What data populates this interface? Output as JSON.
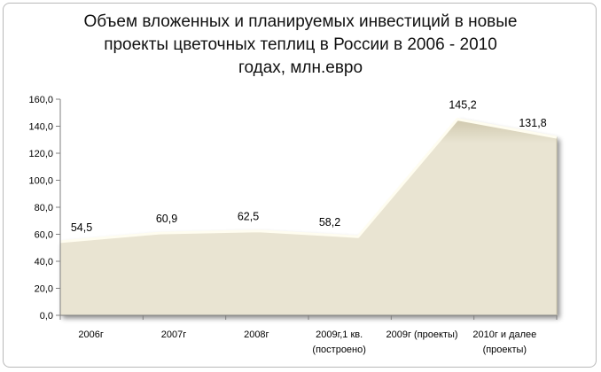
{
  "chart_data": {
    "type": "area",
    "title_lines": [
      "Объем вложенных и планируемых инвестиций в новые",
      "проекты цветочных теплиц в России в 2006 - 2010",
      "годах, млн.евро"
    ],
    "categories": [
      "2006г",
      "2007г",
      "2008г",
      "2009г,1 кв.\n(построено)",
      "2009г (проекты)",
      "2010г и далее\n(проекты)"
    ],
    "values": [
      54.5,
      60.9,
      62.5,
      58.2,
      145.2,
      131.8
    ],
    "value_labels": [
      "54,5",
      "60,9",
      "62,5",
      "58,2",
      "145,2",
      "131,8"
    ],
    "y_ticks": [
      "0,0",
      "20,0",
      "40,0",
      "60,0",
      "80,0",
      "100,0",
      "120,0",
      "140,0",
      "160,0"
    ],
    "ylim": [
      0,
      160
    ],
    "grid": false,
    "legend": "none",
    "colors": {
      "fill": "#e9e4d2",
      "fill_dark": "#cfc8ad",
      "edge_highlight": "#fffdf0",
      "shadow": "#000000"
    }
  }
}
